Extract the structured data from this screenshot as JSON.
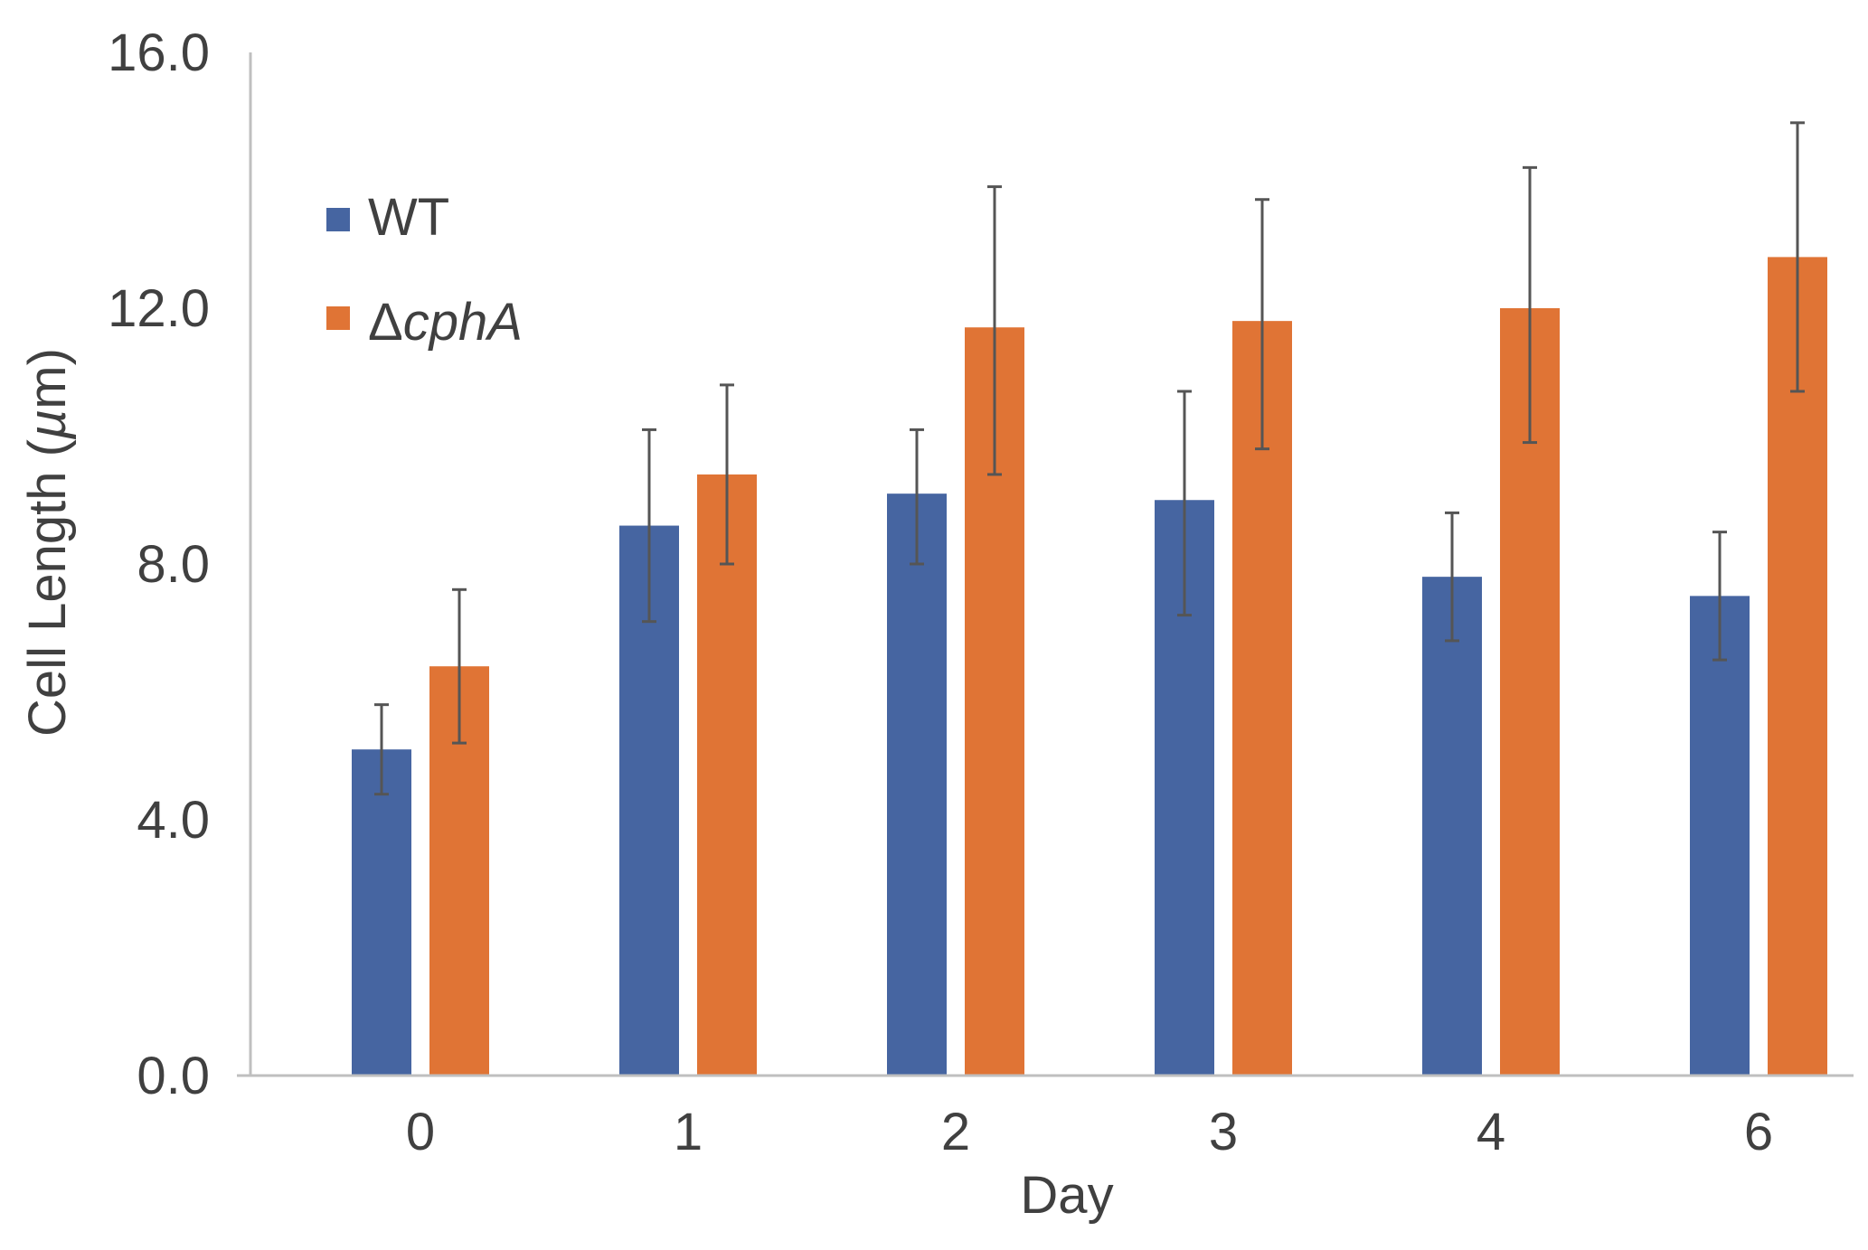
{
  "chart_data": {
    "type": "bar",
    "xlabel": "Day",
    "ylabel": "Cell Length (µm)",
    "ylabel_parts": [
      "Cell Length (",
      "µ",
      "m)"
    ],
    "categories": [
      "0",
      "1",
      "2",
      "3",
      "4",
      "6"
    ],
    "ylim": [
      0,
      16
    ],
    "yticks": [
      "0.0",
      "4.0",
      "8.0",
      "12.0",
      "16.0"
    ],
    "grid": false,
    "legend_position": "top-left",
    "series": [
      {
        "name": "WT",
        "name_parts": [
          "WT"
        ],
        "color": "#4665a1",
        "values": [
          5.1,
          8.6,
          9.1,
          9.0,
          7.8,
          7.5
        ],
        "err_low": [
          4.4,
          7.1,
          8.0,
          7.2,
          6.8,
          6.5
        ],
        "err_high": [
          5.8,
          10.1,
          10.1,
          10.7,
          8.8,
          8.5
        ]
      },
      {
        "name": "ΔcphA",
        "name_parts": [
          "Δ",
          "cphA"
        ],
        "color": "#e07435",
        "values": [
          6.4,
          9.4,
          11.7,
          11.8,
          12.0,
          12.8
        ],
        "err_low": [
          5.2,
          8.0,
          9.4,
          9.8,
          9.9,
          10.7
        ],
        "err_high": [
          7.6,
          10.8,
          13.9,
          13.7,
          14.2,
          14.9
        ]
      }
    ]
  }
}
